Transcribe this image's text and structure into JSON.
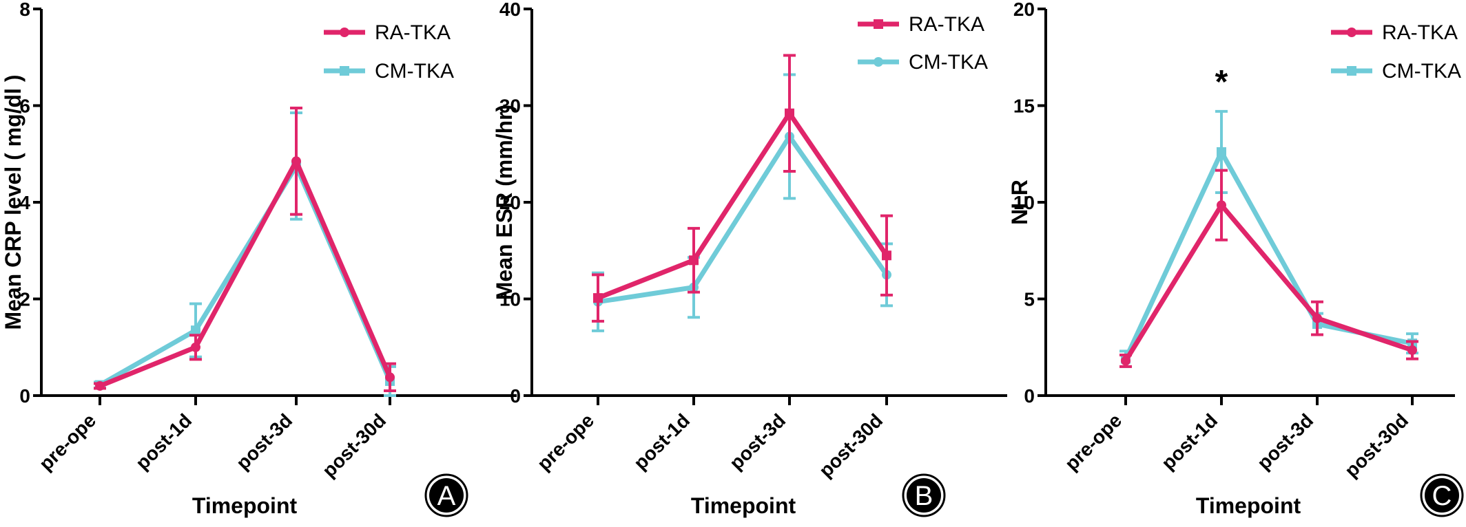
{
  "colors": {
    "RA-TKA": "#e0256a",
    "CM-TKA": "#6fcbd8"
  },
  "chart_data": [
    {
      "panel_label": "A",
      "type": "line",
      "categories": [
        "pre-ope",
        "post-1d",
        "post-3d",
        "post-30d"
      ],
      "xlabel": "Timepoint",
      "ylabel": "Mean CRP level ( mg/dl )",
      "ylim": [
        0,
        8
      ],
      "yticks": [
        0,
        2,
        4,
        6,
        8
      ],
      "legend_position": "top-right",
      "series": [
        {
          "name": "RA-TKA",
          "marker": "circle",
          "values": [
            0.2,
            1.0,
            4.85,
            0.38
          ],
          "errors": [
            0.05,
            0.25,
            1.1,
            0.28
          ]
        },
        {
          "name": "CM-TKA",
          "marker": "square",
          "values": [
            0.22,
            1.35,
            4.75,
            0.3
          ],
          "errors": [
            0.06,
            0.55,
            1.1,
            0.3
          ]
        }
      ]
    },
    {
      "panel_label": "B",
      "type": "line",
      "categories": [
        "pre-ope",
        "post-1d",
        "post-3d",
        "post-30d"
      ],
      "xlabel": "Timepoint",
      "ylabel": "Mean ESR (mm/hr)",
      "ylim": [
        0,
        40
      ],
      "yticks": [
        0,
        10,
        20,
        30,
        40
      ],
      "legend_position": "top-right",
      "series": [
        {
          "name": "RA-TKA",
          "marker": "square",
          "values": [
            10.1,
            14.0,
            29.2,
            14.5
          ],
          "errors": [
            2.4,
            3.3,
            6.0,
            4.1
          ]
        },
        {
          "name": "CM-TKA",
          "marker": "circle",
          "values": [
            9.7,
            11.2,
            26.8,
            12.5
          ],
          "errors": [
            3.0,
            3.1,
            6.4,
            3.2
          ]
        }
      ]
    },
    {
      "panel_label": "C",
      "type": "line",
      "categories": [
        "pre-ope",
        "post-1d",
        "post-3d",
        "post-30d"
      ],
      "xlabel": "Timepoint",
      "ylabel": "NLR",
      "ylim": [
        0,
        20
      ],
      "yticks": [
        0,
        5,
        10,
        15,
        20
      ],
      "legend_position": "top-right",
      "annotation": {
        "category": "post-1d",
        "text": "*"
      },
      "series": [
        {
          "name": "RA-TKA",
          "marker": "circle",
          "values": [
            1.8,
            9.85,
            4.0,
            2.35
          ],
          "errors": [
            0.3,
            1.8,
            0.85,
            0.45
          ]
        },
        {
          "name": "CM-TKA",
          "marker": "square",
          "values": [
            1.9,
            12.6,
            3.7,
            2.7
          ],
          "errors": [
            0.4,
            2.1,
            0.55,
            0.5
          ]
        }
      ]
    }
  ]
}
